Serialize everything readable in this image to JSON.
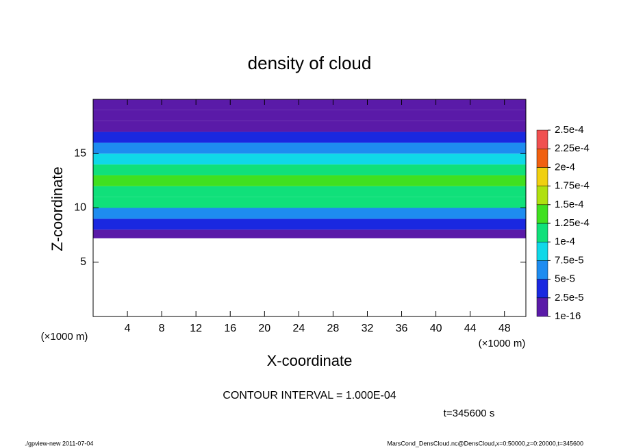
{
  "chart_data": {
    "type": "contour",
    "title": "density of cloud",
    "xlabel": "X-coordinate",
    "ylabel": "Z-coordinate",
    "xunit_left": "(×1000 m)",
    "xunit_right": "(×1000 m)",
    "annotation": "CONTOUR INTERVAL = 1.000E-04",
    "time_label": "t=345600 s",
    "footer_left": "./gpview-new  2011-07-04",
    "footer_right": "MarsCond_DensCloud.nc@DensCloud,x=0:50000,z=0:20000,t=345600",
    "xlim": [
      0,
      50.5
    ],
    "xticks": [
      4,
      8,
      12,
      16,
      20,
      24,
      28,
      32,
      36,
      40,
      44,
      48
    ],
    "ylim": [
      0,
      20
    ],
    "yticks": [
      5,
      10,
      15
    ],
    "z_bins": [
      7.2,
      8,
      9,
      10,
      11,
      12,
      13,
      14,
      15,
      16,
      17,
      18,
      19,
      20
    ],
    "values": [
      2e-05,
      4e-05,
      7e-05,
      0.0001,
      0.00012,
      0.000125,
      0.00011,
      8e-05,
      5e-05,
      3.5e-05,
      2.2e-05,
      1.2e-05,
      8e-06
    ],
    "colorbar": {
      "ticks": [
        {
          "value": 1e-16,
          "label": "1e-16"
        },
        {
          "value": 2.5e-05,
          "label": "2.5e-5"
        },
        {
          "value": 5e-05,
          "label": "5e-5"
        },
        {
          "value": 7.5e-05,
          "label": "7.5e-5"
        },
        {
          "value": 0.0001,
          "label": "1e-4"
        },
        {
          "value": 0.000125,
          "label": "1.25e-4"
        },
        {
          "value": 0.00015,
          "label": "1.5e-4"
        },
        {
          "value": 0.000175,
          "label": "1.75e-4"
        },
        {
          "value": 0.0002,
          "label": "2e-4"
        },
        {
          "value": 0.000225,
          "label": "2.25e-4"
        },
        {
          "value": 0.00025,
          "label": "2.5e-4"
        }
      ],
      "colors": [
        "#5a1aa8",
        "#1a28e0",
        "#1e8cf0",
        "#10d8e8",
        "#10e07a",
        "#40e020",
        "#b0e010",
        "#f0d010",
        "#f06010",
        "#f05050"
      ]
    }
  }
}
